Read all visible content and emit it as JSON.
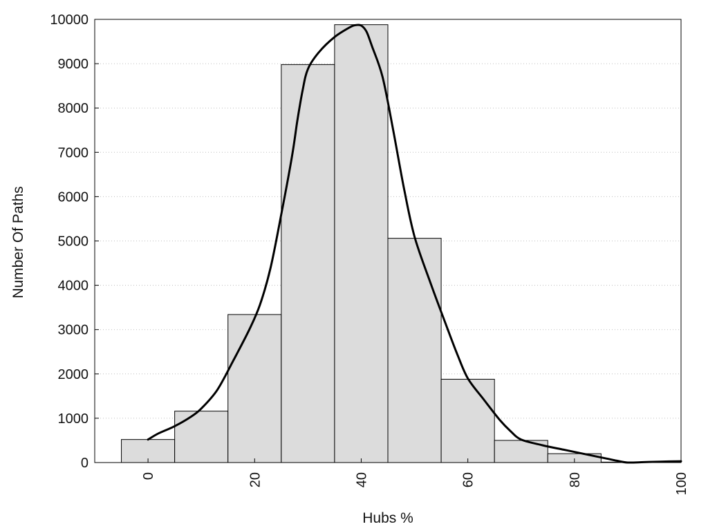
{
  "chart_data": {
    "type": "bar",
    "xlabel": "Hubs %",
    "ylabel": "Number Of Paths",
    "xlim": [
      -10,
      100
    ],
    "ylim": [
      0,
      10000
    ],
    "x_ticks": [
      "0",
      "20",
      "40",
      "60",
      "80",
      "100"
    ],
    "y_ticks": [
      "0",
      "1000",
      "2000",
      "3000",
      "4000",
      "5000",
      "6000",
      "7000",
      "8000",
      "9000",
      "10000"
    ],
    "grid": "horizontal dotted",
    "bar_width": 10,
    "bar_color": "#dcdcdc",
    "line_color": "#000000",
    "series": [
      {
        "kind": "bars",
        "x": [
          0,
          10,
          20,
          30,
          40,
          50,
          60,
          70,
          80,
          90
        ],
        "values": [
          520,
          1160,
          3340,
          8980,
          9880,
          5060,
          1880,
          500,
          200,
          10
        ]
      },
      {
        "kind": "curve",
        "x": [
          0,
          2,
          5,
          8,
          10,
          13,
          16,
          19,
          21,
          23,
          25,
          27,
          28,
          29,
          30,
          32,
          35,
          38,
          39,
          40,
          41,
          42,
          44,
          46,
          48,
          50,
          53,
          56,
          58,
          60,
          63,
          66,
          68,
          70,
          74,
          78,
          82,
          86,
          88,
          90,
          93,
          96,
          100
        ],
        "values": [
          520,
          660,
          820,
          1030,
          1220,
          1640,
          2300,
          3000,
          3560,
          4400,
          5600,
          6900,
          7700,
          8400,
          8880,
          9250,
          9600,
          9830,
          9870,
          9860,
          9720,
          9400,
          8700,
          7500,
          6200,
          5100,
          4050,
          3080,
          2450,
          1900,
          1420,
          960,
          710,
          520,
          390,
          290,
          190,
          90,
          40,
          0,
          10,
          20,
          30
        ]
      }
    ]
  }
}
